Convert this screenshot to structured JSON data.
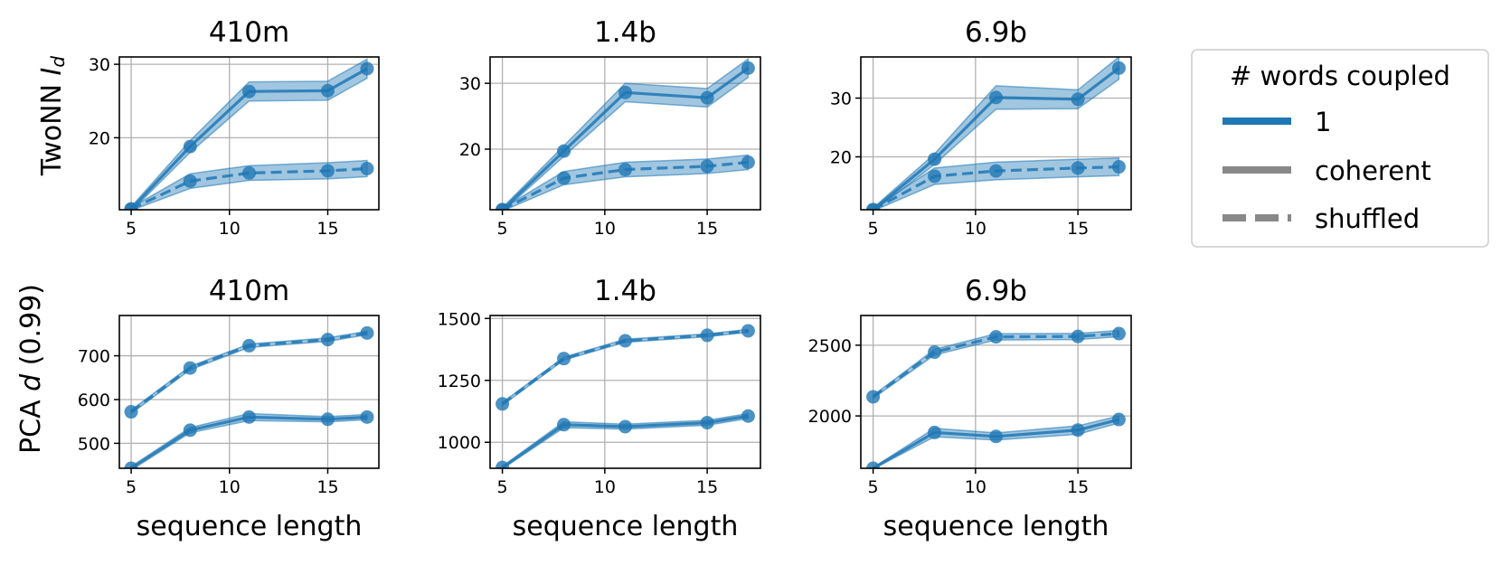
{
  "colors": {
    "series": "#1f77b4",
    "legend_style_sample": "#888888",
    "grid": "#b0b0b0",
    "legend_border": "#cccccc"
  },
  "legend": {
    "title": "# words coupled",
    "placement": "right",
    "entries": [
      {
        "label": "1",
        "style": "solid",
        "color": "#1f77b4"
      },
      {
        "label": "coherent",
        "style": "solid",
        "color": "#888888"
      },
      {
        "label": "shuffled",
        "style": "dashed",
        "color": "#888888"
      }
    ]
  },
  "row_labels": {
    "top_prefix": "TwoNN ",
    "top_italic": "I",
    "top_sub": "d",
    "bottom_prefix": "PCA ",
    "bottom_italic": "d",
    "bottom_suffix": " (0.99)"
  },
  "chart_data": [
    {
      "type": "line",
      "title": "410m",
      "xlabel": "",
      "ylabel": "TwoNN Id",
      "x": [
        5,
        8,
        11,
        15,
        17
      ],
      "xlim": [
        4.4,
        17.6
      ],
      "xticks": [
        5,
        10,
        15
      ],
      "ylim": [
        10.2,
        31
      ],
      "yticks": [
        20,
        30
      ],
      "grid": true,
      "series": [
        {
          "style": "solid",
          "values": [
            10.3,
            18.8,
            26.3,
            26.4,
            29.4
          ],
          "band": [
            0.3,
            0.8,
            1.3,
            1.3,
            1.3
          ]
        },
        {
          "style": "dashed",
          "values": [
            10.3,
            14.1,
            15.2,
            15.5,
            15.8
          ],
          "band": [
            0.2,
            1.0,
            1.0,
            1.1,
            1.1
          ]
        }
      ]
    },
    {
      "type": "line",
      "title": "1.4b",
      "xlabel": "",
      "ylabel": "",
      "x": [
        5,
        8,
        11,
        15,
        17
      ],
      "xlim": [
        4.4,
        17.6
      ],
      "xticks": [
        5,
        10,
        15
      ],
      "ylim": [
        10.8,
        34
      ],
      "yticks": [
        20,
        30
      ],
      "grid": true,
      "series": [
        {
          "style": "solid",
          "values": [
            10.8,
            19.7,
            28.6,
            27.8,
            32.3
          ],
          "band": [
            0.3,
            0.8,
            1.4,
            1.4,
            1.4
          ]
        },
        {
          "style": "dashed",
          "values": [
            10.8,
            15.6,
            16.9,
            17.4,
            18.0
          ],
          "band": [
            0.2,
            1.0,
            1.1,
            1.1,
            1.1
          ]
        }
      ]
    },
    {
      "type": "line",
      "title": "6.9b",
      "xlabel": "",
      "ylabel": "",
      "x": [
        5,
        8,
        11,
        15,
        17
      ],
      "xlim": [
        4.4,
        17.6
      ],
      "xticks": [
        5,
        10,
        15
      ],
      "ylim": [
        11,
        37
      ],
      "yticks": [
        20,
        30
      ],
      "grid": true,
      "series": [
        {
          "style": "solid",
          "values": [
            11.0,
            19.6,
            30.1,
            29.8,
            35.1
          ],
          "band": [
            0.3,
            0.9,
            2.0,
            1.6,
            1.9
          ]
        },
        {
          "style": "dashed",
          "values": [
            11.0,
            16.7,
            17.6,
            18.1,
            18.3
          ],
          "band": [
            0.2,
            1.4,
            1.5,
            1.5,
            1.5
          ]
        }
      ]
    },
    {
      "type": "line",
      "title": "410m",
      "xlabel": "sequence length",
      "ylabel": "PCA d (0.99)",
      "x": [
        5,
        8,
        11,
        15,
        17
      ],
      "xlim": [
        4.4,
        17.6
      ],
      "xticks": [
        5,
        10,
        15
      ],
      "ylim": [
        443,
        792
      ],
      "yticks": [
        500,
        600,
        700
      ],
      "grid": true,
      "series": [
        {
          "style": "dashed",
          "values": [
            572,
            672,
            723,
            737,
            752
          ],
          "band": [
            4,
            4,
            4,
            4,
            4
          ]
        },
        {
          "style": "solid",
          "values": [
            443,
            530,
            560,
            555,
            560
          ],
          "band": [
            4,
            6,
            8,
            6,
            6
          ]
        }
      ]
    },
    {
      "type": "line",
      "title": "1.4b",
      "xlabel": "sequence length",
      "ylabel": "",
      "x": [
        5,
        8,
        11,
        15,
        17
      ],
      "xlim": [
        4.4,
        17.6
      ],
      "xticks": [
        5,
        10,
        15
      ],
      "ylim": [
        895,
        1512
      ],
      "yticks": [
        1000,
        1250,
        1500
      ],
      "grid": true,
      "series": [
        {
          "style": "dashed",
          "values": [
            1155,
            1338,
            1410,
            1432,
            1450
          ],
          "band": [
            6,
            6,
            6,
            6,
            6
          ]
        },
        {
          "style": "solid",
          "values": [
            898,
            1071,
            1063,
            1079,
            1106
          ],
          "band": [
            5,
            12,
            10,
            10,
            10
          ]
        }
      ]
    },
    {
      "type": "line",
      "title": "6.9b",
      "xlabel": "sequence length",
      "ylabel": "",
      "x": [
        5,
        8,
        11,
        15,
        17
      ],
      "xlim": [
        4.4,
        17.6
      ],
      "xticks": [
        5,
        10,
        15
      ],
      "ylim": [
        1630,
        2710
      ],
      "yticks": [
        2000,
        2500
      ],
      "grid": true,
      "series": [
        {
          "style": "dashed",
          "values": [
            2135,
            2451,
            2559,
            2562,
            2582
          ],
          "band": [
            10,
            20,
            22,
            22,
            22
          ]
        },
        {
          "style": "solid",
          "values": [
            1630,
            1883,
            1855,
            1900,
            1975
          ],
          "band": [
            5,
            30,
            25,
            30,
            25
          ]
        }
      ]
    }
  ]
}
